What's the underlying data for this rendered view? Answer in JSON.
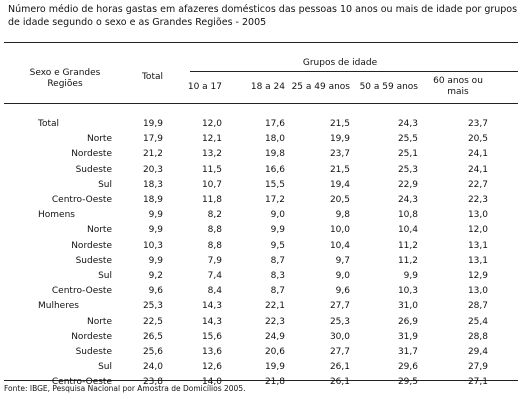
{
  "title": "Número médio de horas gastas em afazeres domésticos das pessoas 10 anos ou mais de idade por grupos de idade segundo o sexo e as Grandes Regiões - 2005",
  "table": {
    "header": {
      "region": "Sexo e Grandes Regiões",
      "total": "Total",
      "group": "Grupos de idade",
      "ages": [
        "10 a 17",
        "18 a 24",
        "25 a 49 anos",
        "50 a 59 anos",
        "60 anos ou mais"
      ]
    },
    "rows": [
      [
        "Total",
        "19,9",
        "12,0",
        "17,6",
        "21,5",
        "24,3",
        "23,7"
      ],
      [
        "Norte",
        "17,9",
        "12,1",
        "18,0",
        "19,9",
        "25,5",
        "20,5"
      ],
      [
        "Nordeste",
        "21,2",
        "13,2",
        "19,8",
        "23,7",
        "25,1",
        "24,1"
      ],
      [
        "Sudeste",
        "20,3",
        "11,5",
        "16,6",
        "21,5",
        "25,3",
        "24,1"
      ],
      [
        "Sul",
        "18,3",
        "10,7",
        "15,5",
        "19,4",
        "22,9",
        "22,7"
      ],
      [
        "Centro-Oeste",
        "18,9",
        "11,8",
        "17,2",
        "20,5",
        "24,3",
        "22,3"
      ],
      [
        "Homens",
        "9,9",
        "8,2",
        "9,0",
        "9,8",
        "10,8",
        "13,0"
      ],
      [
        "Norte",
        "9,9",
        "8,8",
        "9,9",
        "10,0",
        "10,4",
        "12,0"
      ],
      [
        "Nordeste",
        "10,3",
        "8,8",
        "9,5",
        "10,4",
        "11,2",
        "13,1"
      ],
      [
        "Sudeste",
        "9,9",
        "7,9",
        "8,7",
        "9,7",
        "11,2",
        "13,1"
      ],
      [
        "Sul",
        "9,2",
        "7,4",
        "8,3",
        "9,0",
        "9,9",
        "12,9"
      ],
      [
        "Centro-Oeste",
        "9,6",
        "8,4",
        "8,7",
        "9,6",
        "10,3",
        "13,0"
      ],
      [
        "Mulheres",
        "25,3",
        "14,3",
        "22,1",
        "27,7",
        "31,0",
        "28,7"
      ],
      [
        "Norte",
        "22,5",
        "14,3",
        "22,3",
        "25,3",
        "26,9",
        "25,4"
      ],
      [
        "Nordeste",
        "26,5",
        "15,6",
        "24,9",
        "30,0",
        "31,9",
        "28,8"
      ],
      [
        "Sudeste",
        "25,6",
        "13,6",
        "20,6",
        "27,7",
        "31,7",
        "29,4"
      ],
      [
        "Sul",
        "24,0",
        "12,6",
        "19,9",
        "26,1",
        "29,6",
        "27,9"
      ],
      [
        "Centro-Oeste",
        "23,8",
        "14,0",
        "21,8",
        "26,1",
        "29,5",
        "27,1"
      ]
    ]
  },
  "footer": "Fonte: IBGE, Pesquisa Nacional por Amostra de Domicílios 2005."
}
